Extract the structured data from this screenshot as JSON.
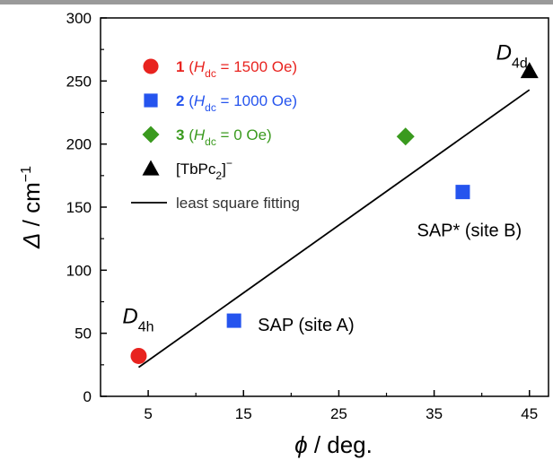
{
  "chart_data": {
    "type": "scatter",
    "xlabel": {
      "symbol": "ϕ",
      "unit": " / deg."
    },
    "ylabel": {
      "symbol": "Δ",
      "unit": " / cm",
      "sup": "−1"
    },
    "xlim": [
      0,
      47
    ],
    "ylim": [
      0,
      300
    ],
    "x_ticks": [
      "5",
      "15",
      "25",
      "35",
      "45"
    ],
    "x_tick_values": [
      5,
      15,
      25,
      35,
      45
    ],
    "y_ticks": [
      "0",
      "50",
      "100",
      "150",
      "200",
      "250",
      "300"
    ],
    "y_tick_values": [
      0,
      50,
      100,
      150,
      200,
      250,
      300
    ],
    "grid": false,
    "legend_placement": "top-left",
    "series": [
      {
        "id": "1",
        "marker": "circle",
        "color": "#e8231f",
        "legend": {
          "num": "1",
          "pre": " (",
          "H": "H",
          "sub": "dc",
          "post": " = 1500 Oe)"
        },
        "points": [
          {
            "x": 4,
            "y": 32
          }
        ]
      },
      {
        "id": "2",
        "marker": "square",
        "color": "#2554ee",
        "legend": {
          "num": "2",
          "pre": " (",
          "H": "H",
          "sub": "dc",
          "post": " = 1000 Oe)"
        },
        "points": [
          {
            "x": 14,
            "y": 60
          },
          {
            "x": 38,
            "y": 162
          }
        ]
      },
      {
        "id": "3",
        "marker": "diamond",
        "color": "#3a9a1e",
        "legend": {
          "num": "3",
          "pre": " (",
          "H": "H",
          "sub": "dc",
          "post": " = 0 Oe)"
        },
        "points": [
          {
            "x": 32,
            "y": 206
          }
        ]
      },
      {
        "id": "tbpc2",
        "marker": "triangle",
        "color": "#000000",
        "legend": {
          "pre": "[TbPc",
          "sub": "2",
          "post": "]",
          "sup": "−"
        },
        "points": [
          {
            "x": 45,
            "y": 258
          }
        ]
      }
    ],
    "fit": {
      "label": "least square fitting",
      "color": "#000000",
      "points": [
        {
          "x": 4,
          "y": 23
        },
        {
          "x": 45,
          "y": 243
        }
      ]
    },
    "annotations": [
      {
        "id": "d4h",
        "main": "D",
        "sub": "4h",
        "x": 2.3,
        "y": 58
      },
      {
        "id": "d4d",
        "main": "D",
        "sub": "4d",
        "x": 41.5,
        "y": 267
      },
      {
        "id": "sap-a",
        "main": "SAP (site A)",
        "x": 16.5,
        "y": 52
      },
      {
        "id": "sap-b",
        "main": "SAP* (site B)",
        "x": 33.2,
        "y": 127
      }
    ]
  }
}
